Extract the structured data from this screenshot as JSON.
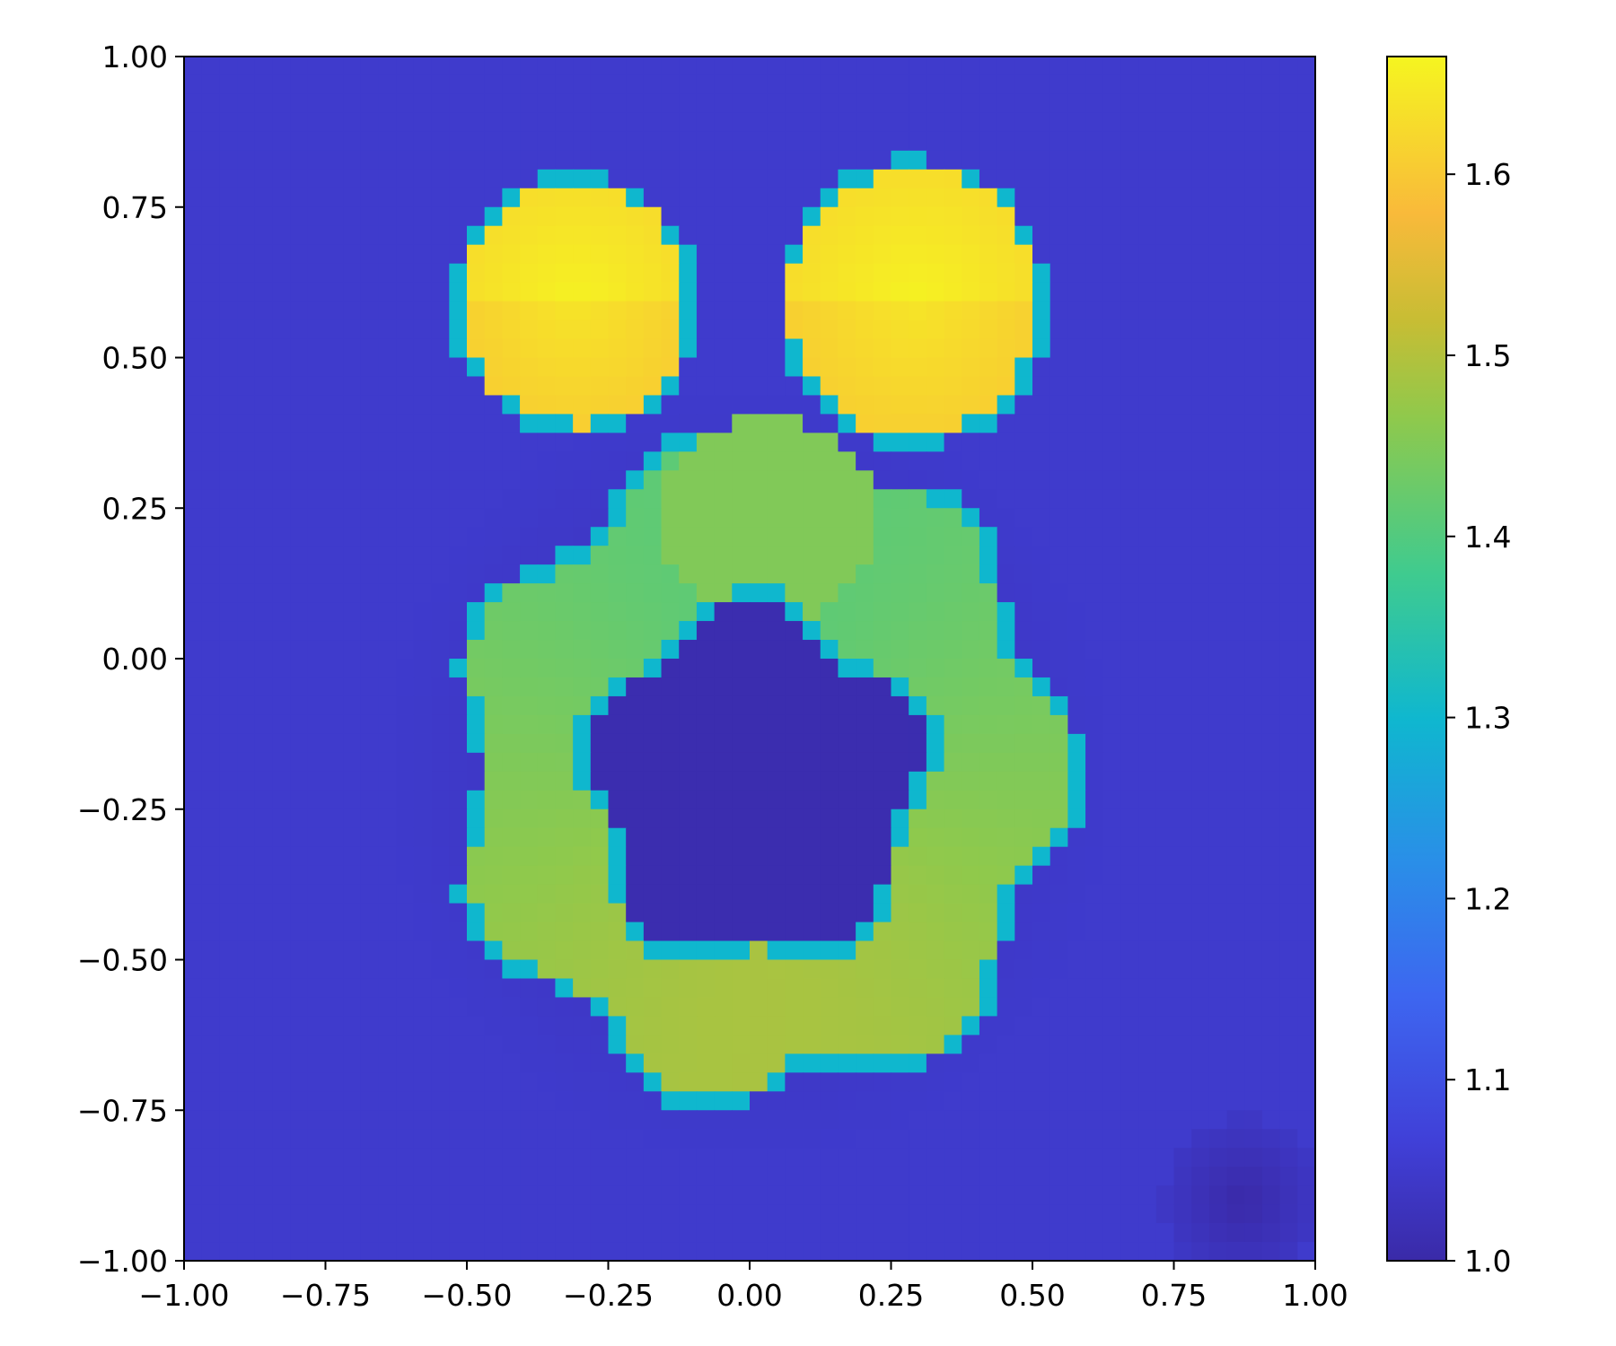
{
  "chart_data": {
    "type": "heatmap",
    "title": "",
    "xlabel": "",
    "ylabel": "",
    "xlim": [
      -1.0,
      1.0
    ],
    "ylim": [
      -1.0,
      1.0
    ],
    "grid": false,
    "grid_size": 64,
    "x_ticks": [
      -1.0,
      -0.75,
      -0.5,
      -0.25,
      0.0,
      0.25,
      0.5,
      0.75,
      1.0
    ],
    "x_tick_labels": [
      "−1.00",
      "−0.75",
      "−0.50",
      "−0.25",
      "0.00",
      "0.25",
      "0.50",
      "0.75",
      "1.00"
    ],
    "y_ticks": [
      1.0,
      0.75,
      0.5,
      0.25,
      0.0,
      -0.25,
      -0.5,
      -0.75,
      -1.0
    ],
    "y_tick_labels": [
      "1.00",
      "0.75",
      "0.50",
      "0.25",
      "0.00",
      "−0.25",
      "−0.50",
      "−0.75",
      "−1.00"
    ],
    "colorbar": {
      "range": [
        1.0,
        1.665
      ],
      "ticks": [
        1.0,
        1.1,
        1.2,
        1.3,
        1.4,
        1.5,
        1.6
      ],
      "tick_labels": [
        "1.0",
        "1.1",
        "1.2",
        "1.3",
        "1.4",
        "1.5",
        "1.6"
      ],
      "placement": "right",
      "colormap_stops": [
        [
          0.0,
          "#3a2aa8"
        ],
        [
          0.1,
          "#4040d8"
        ],
        [
          0.22,
          "#3d66f0"
        ],
        [
          0.33,
          "#2a8ee8"
        ],
        [
          0.45,
          "#0fb7cf"
        ],
        [
          0.57,
          "#3fcb8f"
        ],
        [
          0.7,
          "#8fc94c"
        ],
        [
          0.78,
          "#c7bd34"
        ],
        [
          0.87,
          "#f9ba3a"
        ],
        [
          1.0,
          "#f5f520"
        ]
      ]
    },
    "regions": {
      "background": 1.05,
      "left_circle": {
        "cx": -0.31,
        "cy": 0.59,
        "r": 0.2,
        "value": 1.63
      },
      "right_circle": {
        "cx": 0.29,
        "cy": 0.59,
        "r": 0.22,
        "value": 1.63
      },
      "ring": {
        "cx": 0.02,
        "cy": -0.19,
        "r_outer_base": 0.54,
        "r_outer_amplitude": 0.04,
        "value_low": 1.49,
        "value_high": 1.41
      },
      "top_lobe": {
        "cx": 0.03,
        "cy": 0.23,
        "rx": 0.19,
        "ry": 0.17,
        "value": 1.45
      },
      "hole": {
        "cx": 0.01,
        "cy": -0.21,
        "r": 0.31,
        "value": 1.01
      },
      "dark_halo": {
        "cx": 0.0,
        "cy": -0.19,
        "r": 0.64,
        "value": 1.02
      },
      "bottom_right_dark": {
        "cx": 0.87,
        "cy": -0.9,
        "r": 0.14,
        "value": 1.0
      }
    }
  }
}
